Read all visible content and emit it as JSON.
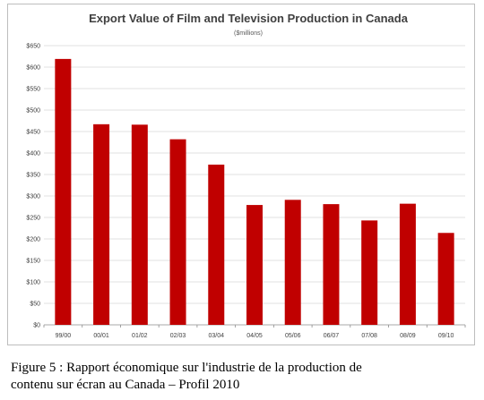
{
  "chart_data": {
    "type": "bar",
    "title": "Export Value of Film and Television Production in Canada",
    "subtitle": "($millions)",
    "categories": [
      "99/00",
      "00/01",
      "01/02",
      "02/03",
      "03/04",
      "04/05",
      "05/06",
      "06/07",
      "07/08",
      "08/09",
      "09/10"
    ],
    "values": [
      619,
      467,
      466,
      432,
      373,
      279,
      291,
      281,
      243,
      282,
      214
    ],
    "ylim": [
      0,
      650
    ],
    "yticks": [
      "$0",
      "$50",
      "$100",
      "$150",
      "$200",
      "$250",
      "$300",
      "$350",
      "$400",
      "$450",
      "$500",
      "$550",
      "$600",
      "$650"
    ],
    "ytick_values": [
      0,
      50,
      100,
      150,
      200,
      250,
      300,
      350,
      400,
      450,
      500,
      550,
      600,
      650
    ],
    "grid": true,
    "legend": "none",
    "bar_color": "#c00000",
    "grid_color": "#d9d9d9"
  },
  "caption": {
    "line1": "Figure 5 : Rapport économique sur l'industrie de la production de",
    "line2": "contenu sur écran au Canada – Profil 2010"
  }
}
